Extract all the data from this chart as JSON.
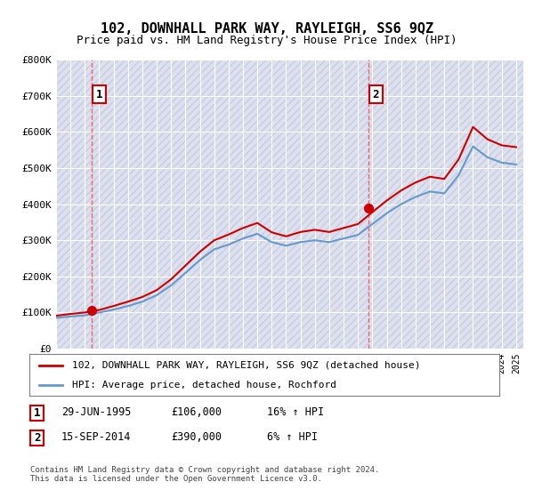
{
  "title": "102, DOWNHALL PARK WAY, RAYLEIGH, SS6 9QZ",
  "subtitle": "Price paid vs. HM Land Registry's House Price Index (HPI)",
  "legend_line1": "102, DOWNHALL PARK WAY, RAYLEIGH, SS6 9QZ (detached house)",
  "legend_line2": "HPI: Average price, detached house, Rochford",
  "table_rows": [
    [
      "1",
      "29-JUN-1995",
      "£106,000",
      "16% ↑ HPI"
    ],
    [
      "2",
      "15-SEP-2014",
      "£390,000",
      "6% ↑ HPI"
    ]
  ],
  "footer": "Contains HM Land Registry data © Crown copyright and database right 2024.\nThis data is licensed under the Open Government Licence v3.0.",
  "sale1_year": 1995.49,
  "sale1_price": 106000,
  "sale2_year": 2014.71,
  "sale2_price": 390000,
  "ylim": [
    0,
    800000
  ],
  "xlim_start": 1993.0,
  "xlim_end": 2025.5,
  "hpi_color": "#6699cc",
  "price_color": "#cc0000",
  "vline_color": "#ff4444",
  "background_hatch_color": "#e8e8f0",
  "hpi_years": [
    1993,
    1994,
    1995,
    1996,
    1997,
    1998,
    1999,
    2000,
    2001,
    2002,
    2003,
    2004,
    2005,
    2006,
    2007,
    2008,
    2009,
    2010,
    2011,
    2012,
    2013,
    2014,
    2015,
    2016,
    2017,
    2018,
    2019,
    2020,
    2021,
    2022,
    2023,
    2024,
    2025
  ],
  "hpi_values": [
    85000,
    89000,
    92000,
    100000,
    108000,
    118000,
    130000,
    148000,
    175000,
    210000,
    245000,
    275000,
    288000,
    305000,
    318000,
    295000,
    285000,
    295000,
    300000,
    295000,
    305000,
    315000,
    345000,
    375000,
    400000,
    420000,
    435000,
    430000,
    480000,
    560000,
    530000,
    515000,
    510000
  ],
  "price_scaled_years": [
    1993,
    1994,
    1995,
    1996,
    1997,
    1998,
    1999,
    2000,
    2001,
    2002,
    2003,
    2004,
    2005,
    2006,
    2007,
    2008,
    2009,
    2010,
    2011,
    2012,
    2013,
    2014,
    2015,
    2016,
    2017,
    2018,
    2019,
    2020,
    2021,
    2022,
    2023,
    2024,
    2025
  ],
  "price_scaled_values": [
    91000,
    96000,
    100000,
    107000,
    118000,
    130000,
    143000,
    162000,
    192000,
    230000,
    268000,
    300000,
    316000,
    334000,
    348000,
    322000,
    311000,
    323000,
    329000,
    323000,
    334000,
    345000,
    378000,
    410000,
    438000,
    460000,
    476000,
    470000,
    524000,
    614000,
    580000,
    563000,
    558000
  ]
}
